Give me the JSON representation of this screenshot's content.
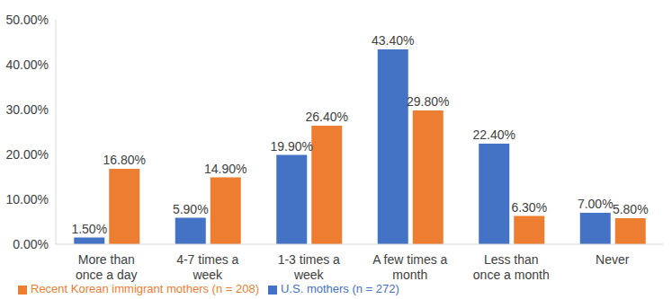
{
  "chart_data": {
    "type": "bar",
    "categories": [
      "More than once a day",
      "4-7 times a week",
      "1-3 times a week",
      "A few times a month",
      "Less than once a month",
      "Never"
    ],
    "series": [
      {
        "name": "U.S. mothers (n = 272)",
        "color": "#4472c4",
        "values": [
          1.5,
          5.9,
          19.9,
          43.4,
          22.4,
          7.0
        ],
        "value_labels": [
          "1.50%",
          "5.90%",
          "19.90%",
          "43.40%",
          "22.40%",
          "7.00%"
        ]
      },
      {
        "name": "Recent Korean immigrant mothers (n = 208)",
        "color": "#ed7d31",
        "values": [
          16.8,
          14.9,
          26.4,
          29.8,
          6.3,
          5.8
        ],
        "value_labels": [
          "16.80%",
          "14.90%",
          "26.40%",
          "29.80%",
          "6.30%",
          "5.80%"
        ]
      }
    ],
    "ylim": [
      0,
      50
    ],
    "yticks": [
      {
        "value": 0,
        "label": "0.00%"
      },
      {
        "value": 10,
        "label": "10.00%"
      },
      {
        "value": 20,
        "label": "20.00%"
      },
      {
        "value": 30,
        "label": "30.00%"
      },
      {
        "value": 40,
        "label": "40.00%"
      },
      {
        "value": 50,
        "label": "50.00%"
      }
    ],
    "grid": false,
    "legend": "bottom",
    "data_labels": true
  }
}
